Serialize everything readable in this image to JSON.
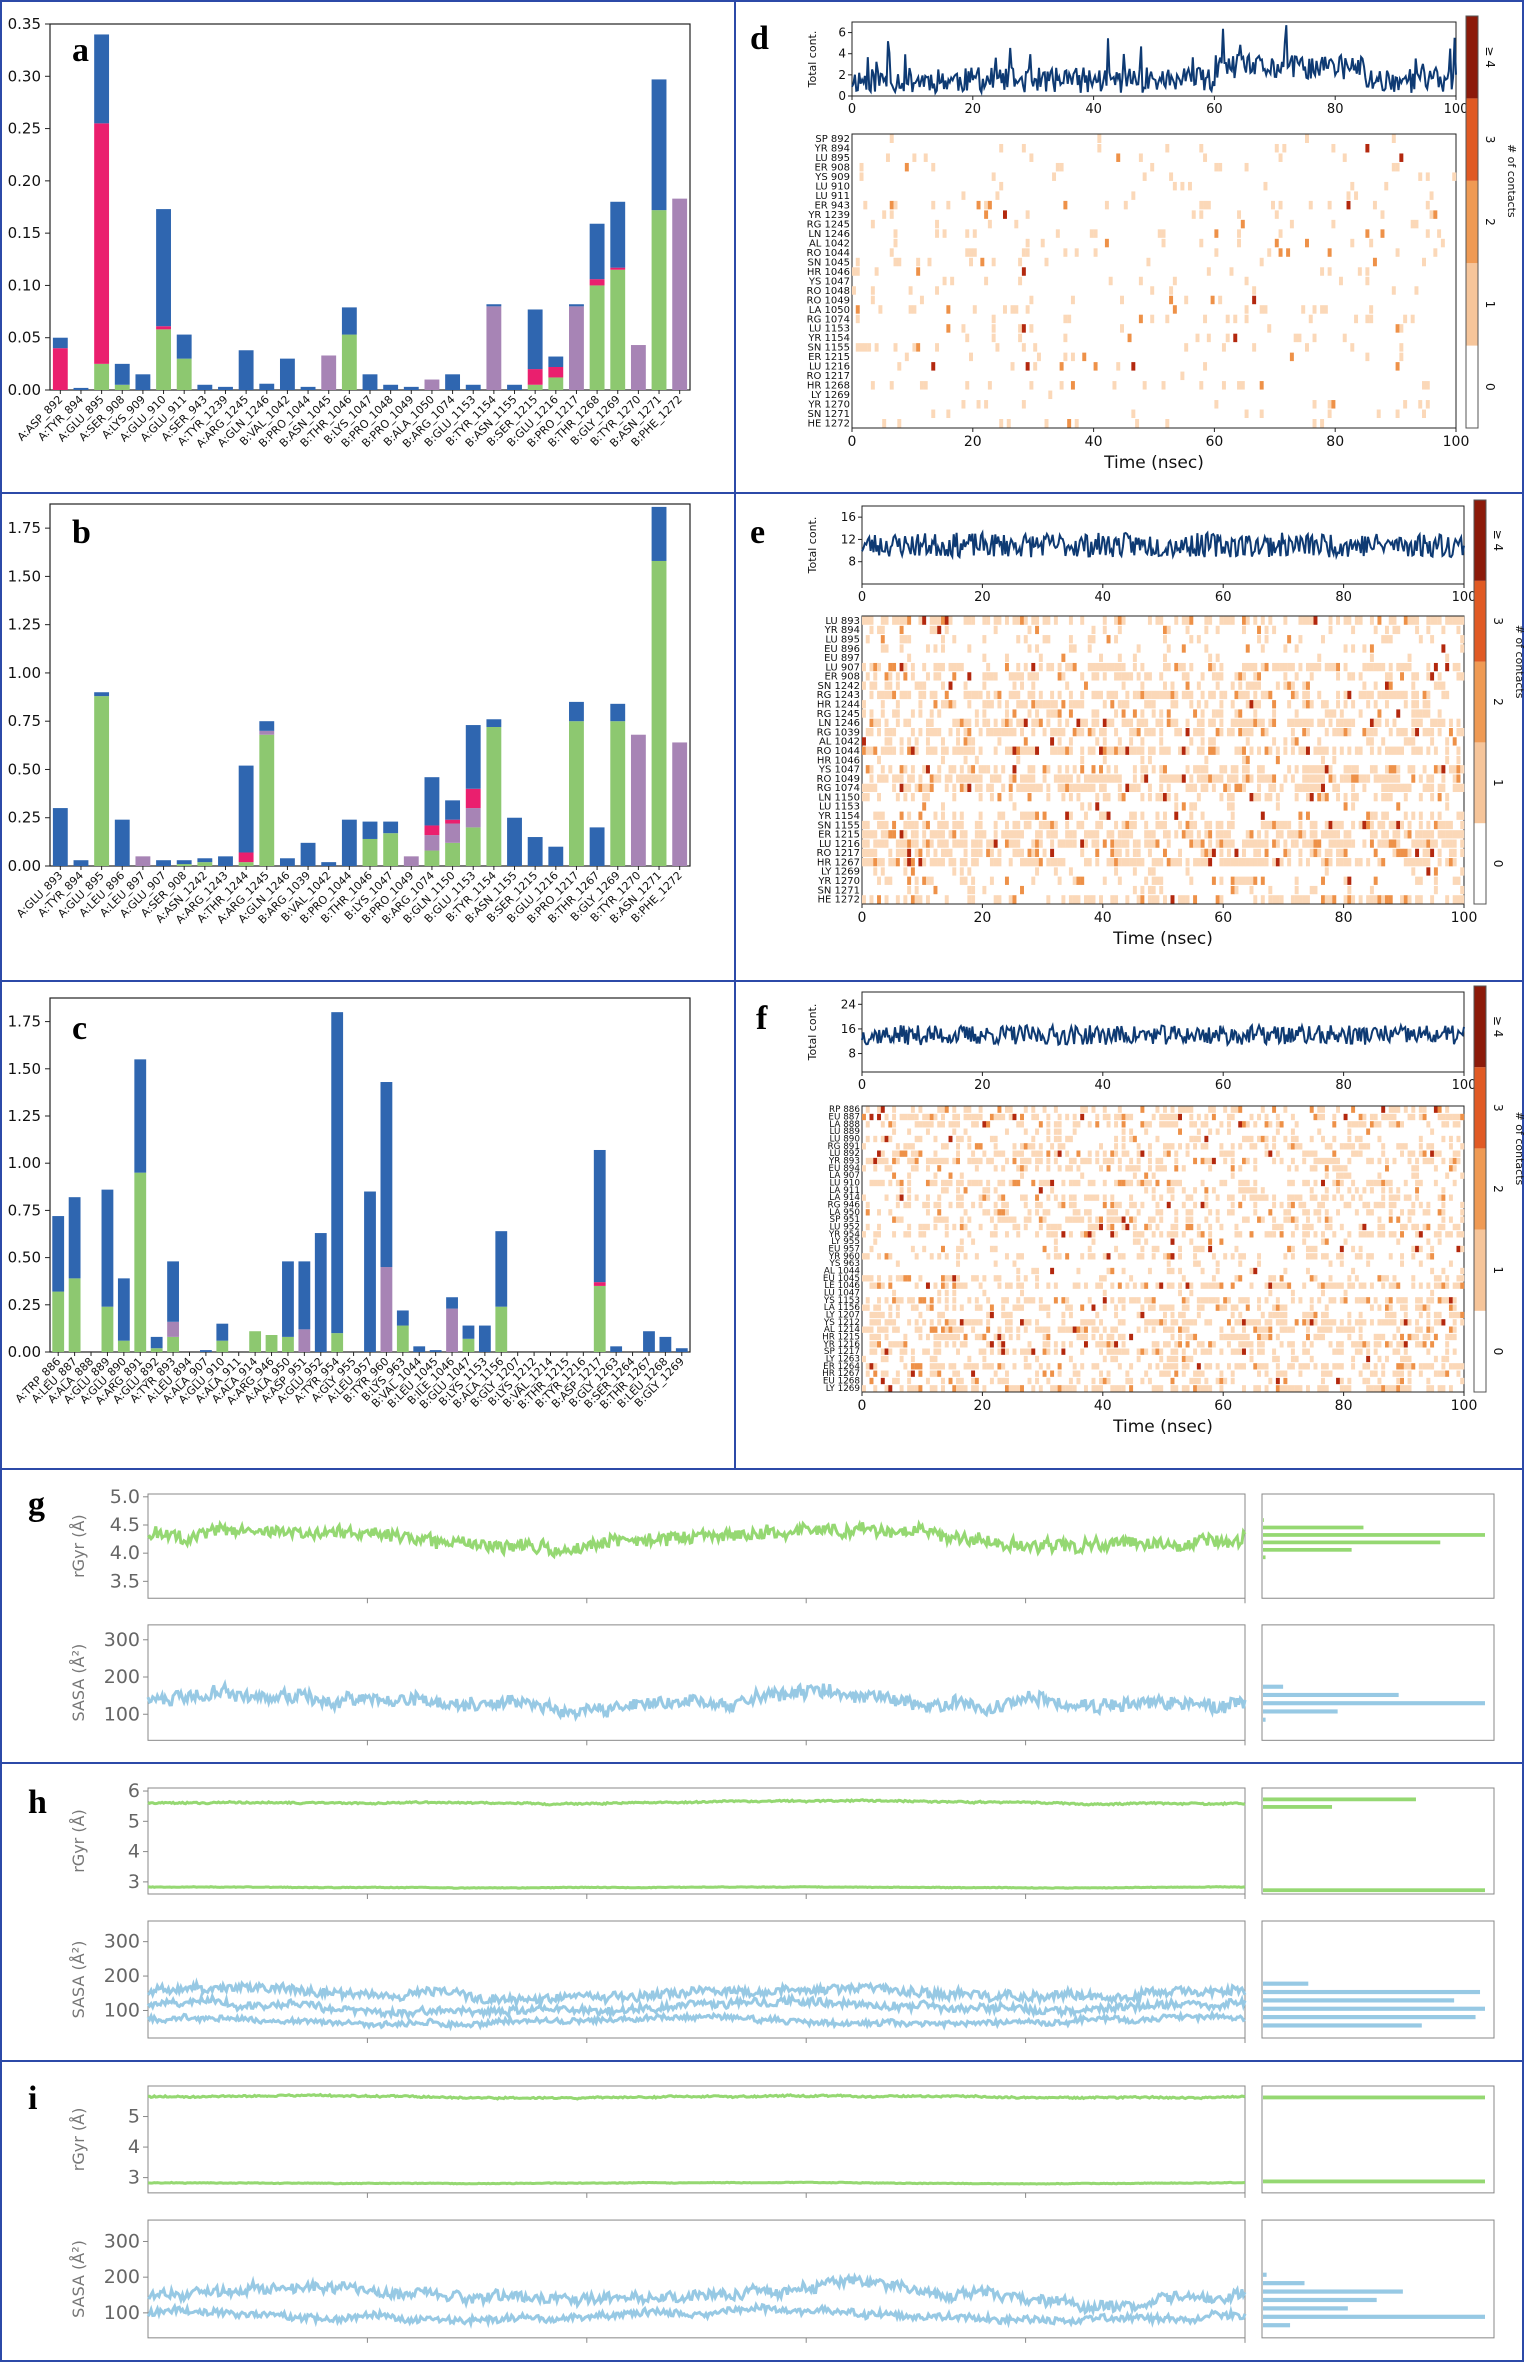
{
  "panel_labels": {
    "a": "a",
    "b": "b",
    "c": "c",
    "d": "d",
    "e": "e",
    "f": "f",
    "g": "g",
    "h": "h",
    "i": "i"
  },
  "colors": {
    "hbond": "#8dc870",
    "hydrophobic": "#a784b5",
    "ionic": "#ea1f6e",
    "water": "#2f66b0",
    "frame": "#2c4aa8",
    "timeline": "#0e3a73",
    "rgyr": "#95d872",
    "sasa": "#97c9e4",
    "heat_low": "#fbd8b8",
    "heat_mid": "#ee9148",
    "heat_high": "#b3280e"
  },
  "colorbar": {
    "label": "# of contacts",
    "ticks": [
      "0",
      "1",
      "2",
      "3",
      "≥ 4"
    ]
  },
  "chart_data": [
    {
      "id": "a",
      "type": "bar",
      "stacked": true,
      "ylim": [
        0,
        0.35
      ],
      "yticks": [
        "0.00",
        "0.05",
        "0.10",
        "0.15",
        "0.20",
        "0.25",
        "0.30",
        "0.35"
      ],
      "categories": [
        "A:ASP_892",
        "A:TYR_894",
        "A:GLU_895",
        "A:SER_908",
        "A:LYS_909",
        "A:GLU_910",
        "A:GLU_911",
        "A:SER_943",
        "A:TYR_1239",
        "A:ARG_1245",
        "A:GLN_1246",
        "B:VAL_1042",
        "B:PRO_1044",
        "B:ASN_1045",
        "B:THR_1046",
        "B:LYS_1047",
        "B:PRO_1048",
        "B:PRO_1049",
        "B:ALA_1050",
        "B:ARG_1074",
        "B:GLU_1153",
        "B:TYR_1154",
        "B:ASN_1155",
        "B:SER_1215",
        "B:GLU_1216",
        "B:PRO_1217",
        "B:THR_1268",
        "B:GLY_1269",
        "B:TYR_1270",
        "B:ASN_1271",
        "B:PHE_1272"
      ],
      "series": [
        {
          "name": "H-bonds",
          "values": [
            0,
            0,
            0.025,
            0.005,
            0,
            0.058,
            0.03,
            0,
            0,
            0,
            0,
            0,
            0,
            0,
            0.053,
            0,
            0,
            0,
            0,
            0,
            0,
            0,
            0,
            0.005,
            0.012,
            0,
            0.1,
            0.115,
            0,
            0.172,
            0
          ]
        },
        {
          "name": "Hydrophobic",
          "values": [
            0,
            0,
            0,
            0,
            0,
            0,
            0,
            0,
            0,
            0,
            0,
            0,
            0,
            0.033,
            0,
            0,
            0,
            0,
            0.01,
            0,
            0,
            0.08,
            0,
            0,
            0,
            0.08,
            0,
            0,
            0.043,
            0,
            0.183
          ]
        },
        {
          "name": "Ionic",
          "values": [
            0.04,
            0,
            0.23,
            0,
            0,
            0.003,
            0,
            0,
            0,
            0,
            0,
            0,
            0,
            0,
            0,
            0,
            0,
            0,
            0,
            0,
            0,
            0,
            0,
            0.015,
            0.01,
            0,
            0.006,
            0.002,
            0,
            0,
            0
          ]
        },
        {
          "name": "Water bridges",
          "values": [
            0.01,
            0.002,
            0.085,
            0.02,
            0.015,
            0.112,
            0.023,
            0.005,
            0.003,
            0.038,
            0.006,
            0.03,
            0.003,
            0,
            0.026,
            0.015,
            0.005,
            0.003,
            0,
            0.015,
            0.005,
            0.002,
            0.005,
            0.057,
            0.01,
            0.002,
            0.053,
            0.063,
            0,
            0.125,
            0
          ]
        }
      ]
    },
    {
      "id": "b",
      "type": "bar",
      "stacked": true,
      "ylim": [
        0,
        1.875
      ],
      "yticks": [
        "0.00",
        "0.25",
        "0.50",
        "0.75",
        "1.00",
        "1.25",
        "1.50",
        "1.75"
      ],
      "categories": [
        "A:GLU_893",
        "A:TYR_894",
        "A:GLU_895",
        "A:LEU_896",
        "A:LEU_897",
        "A:GLU_907",
        "A:SER_908",
        "A:ASN_1242",
        "A:ARG_1243",
        "A:THR_1244",
        "A:ARG_1245",
        "A:GLN_1246",
        "B:ARG_1039",
        "B:VAL_1042",
        "B:PRO_1044",
        "B:THR_1046",
        "B:LYS_1047",
        "B:PRO_1049",
        "B:ARG_1074",
        "B:GLN_1150",
        "B:GLU_1153",
        "B:TYR_1154",
        "B:ASN_1155",
        "B:SER_1215",
        "B:GLU_1216",
        "B:PRO_1217",
        "B:THR_1267",
        "B:GLY_1269",
        "B:TYR_1270",
        "B:ASN_1271",
        "B:PHE_1272"
      ],
      "series": [
        {
          "name": "H-bonds",
          "values": [
            0,
            0,
            0.88,
            0,
            0,
            0,
            0.01,
            0.02,
            0,
            0.02,
            0.68,
            0,
            0,
            0,
            0,
            0.14,
            0.17,
            0,
            0.08,
            0.12,
            0.2,
            0.72,
            0,
            0,
            0,
            0.75,
            0,
            0.75,
            0,
            1.58,
            0
          ]
        },
        {
          "name": "Hydrophobic",
          "values": [
            0,
            0,
            0,
            0,
            0.05,
            0,
            0,
            0,
            0,
            0,
            0.02,
            0,
            0,
            0,
            0,
            0,
            0,
            0.05,
            0.08,
            0.1,
            0.1,
            0,
            0,
            0,
            0,
            0,
            0,
            0,
            0.68,
            0,
            0.64
          ]
        },
        {
          "name": "Ionic",
          "values": [
            0,
            0,
            0,
            0,
            0,
            0,
            0,
            0,
            0,
            0.05,
            0,
            0,
            0,
            0,
            0,
            0,
            0,
            0,
            0.05,
            0.02,
            0.1,
            0,
            0,
            0,
            0,
            0,
            0,
            0,
            0,
            0,
            0
          ]
        },
        {
          "name": "Water bridges",
          "values": [
            0.3,
            0.03,
            0.02,
            0.24,
            0,
            0.03,
            0.02,
            0.02,
            0.05,
            0.45,
            0.05,
            0.04,
            0.12,
            0.02,
            0.24,
            0.09,
            0.06,
            0,
            0.25,
            0.1,
            0.33,
            0.04,
            0.25,
            0.15,
            0.1,
            0.1,
            0.2,
            0.09,
            0,
            0.28,
            0
          ]
        }
      ]
    },
    {
      "id": "c",
      "type": "bar",
      "stacked": true,
      "ylim": [
        0,
        1.875
      ],
      "yticks": [
        "0.00",
        "0.25",
        "0.50",
        "0.75",
        "1.00",
        "1.25",
        "1.50",
        "1.75"
      ],
      "categories": [
        "A:TRP_886",
        "A:LEU_887",
        "A:ALA_888",
        "A:GLU_889",
        "A:GLU_890",
        "A:ARG_891",
        "A:GLU_892",
        "A:TYR_893",
        "A:LEU_894",
        "A:ALA_907",
        "A:GLU_910",
        "A:ALA_911",
        "A:ALA_914",
        "A:ARG_946",
        "A:ALA_950",
        "A:ASP_951",
        "A:GLU_952",
        "A:TYR_954",
        "A:GLY_955",
        "A:LEU_957",
        "B:TYR_960",
        "B:LYS_963",
        "B:VAL_1044",
        "B:LEU_1045",
        "B:ILE_1046",
        "B:GLU_1047",
        "B:LYS_1153",
        "B:ALA_1156",
        "B:GLY_1207",
        "B:LYS_1212",
        "B:VAL_1214",
        "B:THR_1215",
        "B:TYR_1216",
        "B:ASP_1217",
        "B:GLY_1263",
        "B:SER_1264",
        "B:THR_1267",
        "B:LEU_1268",
        "B:GLY_1269"
      ],
      "series": [
        {
          "name": "H-bonds",
          "values": [
            0.32,
            0.39,
            0,
            0.24,
            0.06,
            0.95,
            0.02,
            0.08,
            0,
            0,
            0.06,
            0,
            0.11,
            0.09,
            0.08,
            0,
            0,
            0.1,
            0,
            0,
            0,
            0.14,
            0,
            0,
            0,
            0.07,
            0,
            0.24,
            0,
            0,
            0,
            0,
            0,
            0.35,
            0,
            0,
            0,
            0,
            0
          ]
        },
        {
          "name": "Hydrophobic",
          "values": [
            0,
            0,
            0,
            0,
            0,
            0,
            0,
            0.08,
            0,
            0,
            0,
            0,
            0,
            0,
            0,
            0.12,
            0,
            0,
            0,
            0,
            0.45,
            0,
            0,
            0,
            0.23,
            0,
            0,
            0,
            0,
            0,
            0,
            0,
            0,
            0,
            0,
            0,
            0,
            0,
            0
          ]
        },
        {
          "name": "Ionic",
          "values": [
            0,
            0,
            0,
            0,
            0,
            0,
            0,
            0,
            0,
            0,
            0,
            0,
            0,
            0,
            0,
            0,
            0,
            0,
            0,
            0,
            0,
            0,
            0,
            0,
            0,
            0,
            0,
            0,
            0,
            0,
            0,
            0,
            0,
            0.02,
            0,
            0,
            0,
            0,
            0
          ]
        },
        {
          "name": "Water bridges",
          "values": [
            0.4,
            0.43,
            0,
            0.62,
            0.33,
            0.6,
            0.06,
            0.32,
            0,
            0.01,
            0.09,
            0,
            0,
            0,
            0.4,
            0.36,
            0.63,
            1.7,
            0,
            0.85,
            0.98,
            0.08,
            0.03,
            0.01,
            0.06,
            0.07,
            0.14,
            0.4,
            0,
            0,
            0,
            0,
            0,
            0.7,
            0.03,
            0,
            0.11,
            0.08,
            0.02
          ]
        }
      ]
    },
    {
      "id": "d",
      "type": "heatmap",
      "timeline": {
        "ylabel": "Total cont.",
        "yticks": [
          "0",
          "2",
          "4",
          "6"
        ],
        "ymax": 7,
        "baseline": 1.5,
        "noise": 1.2,
        "spikes": 5
      },
      "xticks": [
        "0",
        "20",
        "40",
        "60",
        "80",
        "100"
      ],
      "xlabel": "Time (nsec)",
      "residues": [
        "SP 892",
        "YR 894",
        "LU 895",
        "ER 908",
        "YS 909",
        "LU 910",
        "LU 911",
        "ER 943",
        "YR 1239",
        "RG 1245",
        "LN 1246",
        "AL 1042",
        "RO 1044",
        "SN 1045",
        "HR 1046",
        "YS 1047",
        "RO 1048",
        "RO 1049",
        "LA 1050",
        "RG 1074",
        "LU 1153",
        "YR 1154",
        "SN 1155",
        "ER 1215",
        "LU 1216",
        "RO 1217",
        "HR 1268",
        "LY 1269",
        "YR 1270",
        "SN 1271",
        "HE 1272"
      ],
      "density": 0.06
    },
    {
      "id": "e",
      "type": "heatmap",
      "timeline": {
        "ylabel": "Total cont.",
        "yticks": [
          "8",
          "12",
          "16"
        ],
        "ymin": 4,
        "ymax": 18,
        "baseline": 11,
        "noise": 2.2,
        "spikes": 0
      },
      "xticks": [
        "0",
        "20",
        "40",
        "60",
        "80",
        "100"
      ],
      "xlabel": "Time (nsec)",
      "residues": [
        "LU 893",
        "YR 894",
        "LU 895",
        "EU 896",
        "EU 897",
        "LU 907",
        "ER 908",
        "SN 1242",
        "RG 1243",
        "HR 1244",
        "RG 1245",
        "LN 1246",
        "RG 1039",
        "AL 1042",
        "RO 1044",
        "HR 1046",
        "YS 1047",
        "RO 1049",
        "RG 1074",
        "LN 1150",
        "LU 1153",
        "YR 1154",
        "SN 1155",
        "ER 1215",
        "LU 1216",
        "RO 1217",
        "HR 1267",
        "LY 1269",
        "YR 1270",
        "SN 1271",
        "HE 1272"
      ],
      "density": 0.35
    },
    {
      "id": "f",
      "type": "heatmap",
      "timeline": {
        "ylabel": "Total cont.",
        "yticks": [
          "8",
          "16",
          "24"
        ],
        "ymin": 2,
        "ymax": 28,
        "baseline": 14,
        "noise": 3.2,
        "spikes": 0
      },
      "xticks": [
        "0",
        "20",
        "40",
        "60",
        "80",
        "100"
      ],
      "xlabel": "Time (nsec)",
      "residues": [
        "RP 886",
        "EU 887",
        "LA 888",
        "LU 889",
        "LU 890",
        "RG 891",
        "LU 892",
        "YR 893",
        "EU 894",
        "LA 907",
        "LU 910",
        "LA 911",
        "LA 914",
        "RG 946",
        "LA 950",
        "SP 951",
        "LU 952",
        "YR 954",
        "LY 955",
        "EU 957",
        "YR 960",
        "YS 963",
        "AL 1044",
        "EU 1045",
        "LE 1046",
        "LU 1047",
        "YS 1153",
        "LA 1156",
        "LY 1207",
        "YS 1212",
        "AL 1214",
        "HR 1215",
        "YR 1216",
        "SP 1217",
        "LY 1263",
        "ER 1264",
        "HR 1267",
        "EU 1268",
        "LY 1269"
      ],
      "density": 0.3
    },
    {
      "id": "g",
      "type": "line",
      "rgyr": {
        "ylabel": "rGyr (Å)",
        "yticks": [
          "3.5",
          "4.0",
          "4.5",
          "5.0"
        ],
        "ylim": [
          3.2,
          5.05
        ],
        "traces": [
          {
            "base": 4.3,
            "amp": 0.35
          }
        ]
      },
      "sasa": {
        "ylabel": "SASA (Å²)",
        "yticks": [
          "100",
          "200",
          "300"
        ],
        "ylim": [
          30,
          340
        ],
        "traces": [
          {
            "base": 140,
            "amp": 55
          }
        ]
      }
    },
    {
      "id": "h",
      "type": "line",
      "rgyr": {
        "ylabel": "rGyr (Å)",
        "yticks": [
          "3",
          "4",
          "5",
          "6"
        ],
        "ylim": [
          2.6,
          6.1
        ],
        "traces": [
          {
            "base": 5.62,
            "amp": 0.08
          },
          {
            "base": 2.82,
            "amp": 0.03
          }
        ]
      },
      "sasa": {
        "ylabel": "SASA (Å²)",
        "yticks": [
          "100",
          "200",
          "300"
        ],
        "ylim": [
          20,
          360
        ],
        "traces": [
          {
            "base": 150,
            "amp": 40
          },
          {
            "base": 110,
            "amp": 35
          },
          {
            "base": 70,
            "amp": 25
          }
        ]
      }
    },
    {
      "id": "i",
      "type": "line",
      "rgyr": {
        "ylabel": "rGyr (Å)",
        "yticks": [
          "3",
          "4",
          "5"
        ],
        "ylim": [
          2.5,
          6.0
        ],
        "traces": [
          {
            "base": 5.65,
            "amp": 0.08
          },
          {
            "base": 2.82,
            "amp": 0.03
          }
        ]
      },
      "sasa": {
        "ylabel": "SASA (Å²)",
        "yticks": [
          "100",
          "200",
          "300"
        ],
        "ylim": [
          30,
          360
        ],
        "traces": [
          {
            "base": 150,
            "amp": 45
          },
          {
            "base": 90,
            "amp": 30
          }
        ]
      }
    }
  ]
}
